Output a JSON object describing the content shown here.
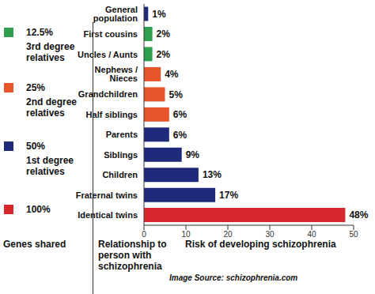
{
  "chart_data": {
    "type": "bar",
    "orientation": "horizontal",
    "data_labels": true,
    "grid": false,
    "categories": [
      "General population",
      "First cousins",
      "Uncles / Aunts",
      "Nephews / Nieces",
      "Grandchildren",
      "Half siblings",
      "Parents",
      "Siblings",
      "Children",
      "Fraternal twins",
      "Identical twins"
    ],
    "values": [
      1,
      2,
      2,
      4,
      5,
      6,
      6,
      9,
      13,
      17,
      48
    ],
    "value_labels": [
      "1%",
      "2%",
      "2%",
      "4%",
      "5%",
      "6%",
      "6%",
      "9%",
      "13%",
      "17%",
      "48%"
    ],
    "colors": [
      "#1f2a7a",
      "#2e9e4f",
      "#2e9e4f",
      "#e8552a",
      "#e8552a",
      "#e8552a",
      "#1f2a7a",
      "#1f2a7a",
      "#1f2a7a",
      "#1f2a7a",
      "#d9272e"
    ],
    "xlim": [
      0,
      50
    ],
    "xticks": [
      0,
      10,
      20,
      30,
      40,
      50
    ],
    "xlabel": "Risk of developing schizophrenia",
    "ylabel": "Relationship to person with schizophrenia",
    "genes_shared": {
      "title": "Genes shared",
      "groups": [
        {
          "label": "12.5%",
          "name": "3rd degree relatives",
          "color": "#2e9e4f"
        },
        {
          "label": "25%",
          "name": "2nd degree relatives",
          "color": "#e8552a"
        },
        {
          "label": "50%",
          "name": "1st degree relatives",
          "color": "#1f2a7a"
        },
        {
          "label": "100%",
          "color": "#d9272e"
        }
      ]
    },
    "source": "Image Source: schizophrenia.com"
  }
}
